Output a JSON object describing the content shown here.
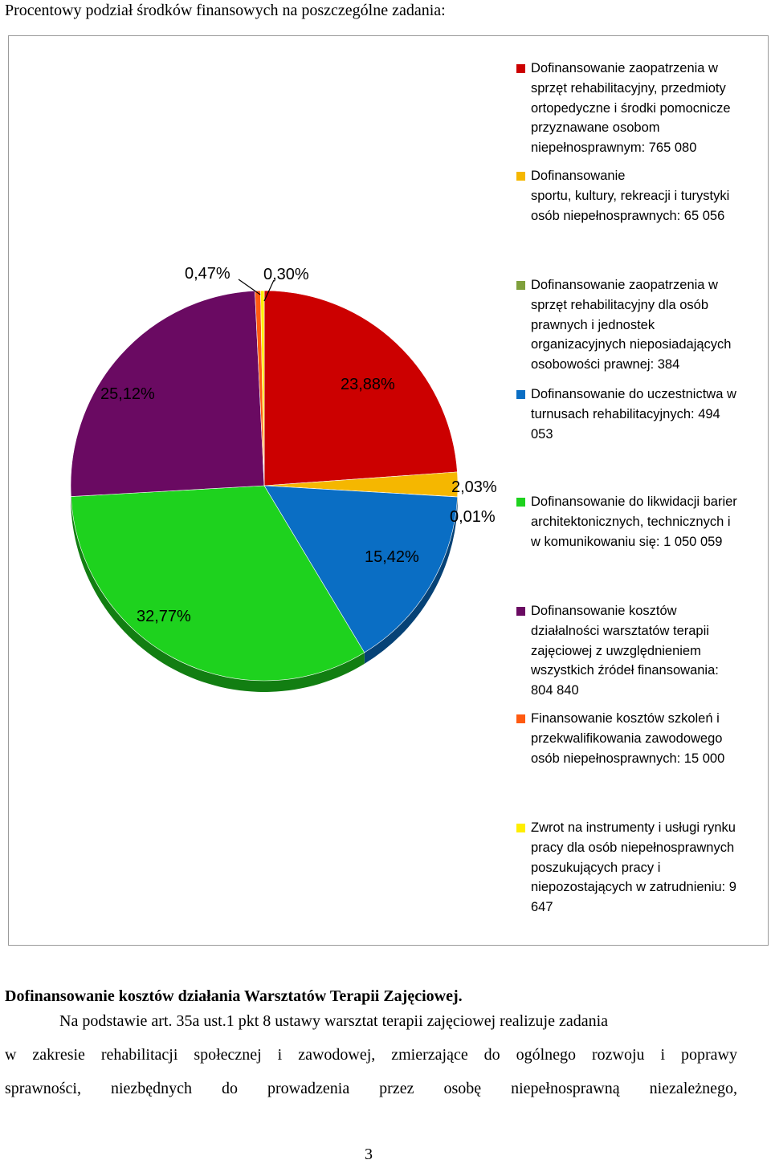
{
  "heading": "Procentowy podział środków finansowych na poszczególne zadania:",
  "chart_data": {
    "type": "pie",
    "slices": [
      {
        "label": "Dofinansowanie zaopatrzenia w sprzęt rehabilitacyjny, przedmioty ortopedyczne i środki pomocnicze przyznawane osobom niepełnosprawnym: 765 080",
        "value": 765080,
        "percent_label": "23,88%",
        "color": "#cc0000"
      },
      {
        "label": "Dofinansowanie sportu, kultury, rekreacji i turystyki osób niepełnosprawnych: 65 056",
        "value": 65056,
        "percent_label": "2,03%",
        "color": "#f5b700"
      },
      {
        "label": "Dofinansowanie zaopatrzenia w sprzęt rehabilitacyjny dla osób prawnych i jednostek organizacyjnych nieposiadających osobowości prawnej: 384",
        "value": 384,
        "percent_label": "0,01%",
        "color": "#7fa03c"
      },
      {
        "label": "Dofinansowanie do uczestnictwa w turnusach rehabilitacyjnych: 494 053",
        "value": 494053,
        "percent_label": "15,42%",
        "color": "#0a6ec4"
      },
      {
        "label": "Dofinansowanie do likwidacji barier architektonicznych, technicznych i w komunikowaniu się: 1 050 059",
        "value": 1050059,
        "percent_label": "32,77%",
        "color": "#1ed21e"
      },
      {
        "label": "Dofinansowanie kosztów działalności warsztatów terapii zajęciowej z uwzględnieniem wszystkich źródeł finansowania: 804 840",
        "value": 804840,
        "percent_label": "25,12%",
        "color": "#6a0a62"
      },
      {
        "label": "Finansowanie kosztów szkoleń i przekwalifikowania zawodowego osób niepełnosprawnych: 15 000",
        "value": 15000,
        "percent_label": "0,47%",
        "color": "#ff5a10"
      },
      {
        "label": "Zwrot na instrumenty i usługi rynku pracy dla osób niepełnosprawnych poszukujących pracy i niepozostających w zatrudnieniu: 9 647",
        "value": 9647,
        "percent_label": "0,30%",
        "color": "#ffee00"
      }
    ],
    "legend_position": "right"
  },
  "legend": [
    {
      "lines": [
        "Dofinansowanie zaopatrzenia w",
        "sprzęt rehabilitacyjny, przedmioty",
        "ortopedyczne i środki pomocnicze",
        "przyznawane osobom",
        "niepełnosprawnym: 765 080"
      ],
      "color": "#cc0000"
    },
    {
      "lines": [
        "Dofinansowanie",
        "sportu, kultury, rekreacji i turystyki",
        "osób niepełnosprawnych: 65 056"
      ],
      "color": "#f5b700"
    },
    {
      "lines": [
        "Dofinansowanie zaopatrzenia w",
        "sprzęt rehabilitacyjny dla osób",
        "prawnych i jednostek",
        "organizacyjnych nieposiadających",
        "osobowości prawnej: 384"
      ],
      "color": "#7fa03c"
    },
    {
      "lines": [
        "Dofinansowanie do uczestnictwa w",
        "turnusach rehabilitacyjnych: 494",
        "053"
      ],
      "color": "#0a6ec4"
    },
    {
      "lines": [
        "Dofinansowanie do likwidacji barier",
        "architektonicznych, technicznych i",
        "w komunikowaniu się: 1 050 059"
      ],
      "color": "#1ed21e"
    },
    {
      "lines": [
        "Dofinansowanie kosztów",
        "działalności warsztatów terapii",
        "zajęciowej z uwzględnieniem",
        "wszystkich źródeł finansowania:",
        "804 840"
      ],
      "color": "#6a0a62"
    },
    {
      "lines": [
        "Finansowanie kosztów szkoleń i",
        "przekwalifikowania zawodowego",
        "osób niepełnosprawnych: 15 000"
      ],
      "color": "#ff5a10"
    },
    {
      "lines": [
        "Zwrot na instrumenty i usługi rynku",
        "pracy dla osób niepełnosprawnych",
        "poszukujących pracy i",
        "niepozostających w zatrudnieniu: 9",
        "647"
      ],
      "color": "#ffee00"
    }
  ],
  "section_heading": "Dofinansowanie kosztów działania Warsztatów Terapii Zajęciowej.",
  "paragraph_lines": [
    "Na podstawie art. 35a ust.1 pkt 8 ustawy warsztat terapii zajęciowej realizuje zadania",
    "w zakresie rehabilitacji społecznej i zawodowej, zmierzające do ogólnego rozwoju i poprawy",
    "sprawności, niezbędnych do prowadzenia przez osobę niepełnosprawną niezależnego,"
  ],
  "page_number": "3"
}
